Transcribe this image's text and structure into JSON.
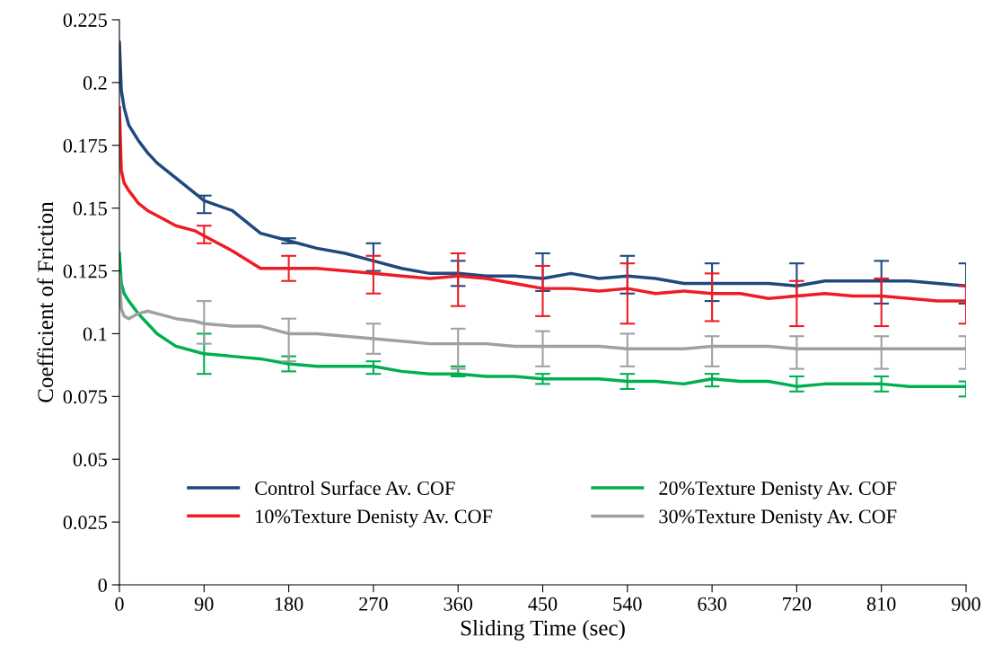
{
  "chart_data": {
    "type": "line",
    "xlabel": "Sliding Time (sec)",
    "ylabel": "Coefficient of Friction",
    "x": [
      0,
      2,
      5,
      10,
      20,
      30,
      40,
      60,
      80,
      90,
      120,
      150,
      180,
      210,
      240,
      270,
      300,
      330,
      360,
      390,
      420,
      450,
      480,
      510,
      540,
      570,
      600,
      630,
      660,
      690,
      720,
      750,
      780,
      810,
      840,
      870,
      900
    ],
    "series": [
      {
        "name": "Control Surface Av. COF",
        "color": "#1f497d",
        "values": [
          0.216,
          0.197,
          0.19,
          0.183,
          0.177,
          0.172,
          0.168,
          0.162,
          0.156,
          0.153,
          0.149,
          0.14,
          0.137,
          0.134,
          0.132,
          0.129,
          0.126,
          0.124,
          0.124,
          0.123,
          0.123,
          0.122,
          0.124,
          0.122,
          0.123,
          0.122,
          0.12,
          0.12,
          0.12,
          0.12,
          0.119,
          0.121,
          0.121,
          0.121,
          0.121,
          0.12,
          0.119
        ],
        "errors": [
          null,
          null,
          null,
          null,
          null,
          null,
          null,
          null,
          null,
          [
            0.148,
            0.155
          ],
          null,
          null,
          [
            0.136,
            0.138
          ],
          null,
          null,
          [
            0.125,
            0.136
          ],
          null,
          null,
          [
            0.119,
            0.129
          ],
          null,
          null,
          [
            0.117,
            0.132
          ],
          null,
          null,
          [
            0.116,
            0.131
          ],
          null,
          null,
          [
            0.113,
            0.128
          ],
          null,
          null,
          [
            0.115,
            0.128
          ],
          null,
          null,
          [
            0.112,
            0.129
          ],
          null,
          null,
          [
            0.112,
            0.128
          ]
        ]
      },
      {
        "name": "10%Texture Denisty Av. COF",
        "color": "#ee1c25",
        "values": [
          0.19,
          0.165,
          0.16,
          0.157,
          0.152,
          0.149,
          0.147,
          0.143,
          0.141,
          0.139,
          0.133,
          0.126,
          0.126,
          0.126,
          0.125,
          0.124,
          0.123,
          0.122,
          0.123,
          0.122,
          0.12,
          0.118,
          0.118,
          0.117,
          0.118,
          0.116,
          0.117,
          0.116,
          0.116,
          0.114,
          0.115,
          0.116,
          0.115,
          0.115,
          0.114,
          0.113,
          0.113
        ],
        "errors": [
          null,
          null,
          null,
          null,
          null,
          null,
          null,
          null,
          null,
          [
            0.136,
            0.143
          ],
          null,
          null,
          [
            0.121,
            0.131
          ],
          null,
          null,
          [
            0.116,
            0.131
          ],
          null,
          null,
          [
            0.111,
            0.132
          ],
          null,
          null,
          [
            0.107,
            0.127
          ],
          null,
          null,
          [
            0.104,
            0.128
          ],
          null,
          null,
          [
            0.105,
            0.124
          ],
          null,
          null,
          [
            0.103,
            0.121
          ],
          null,
          null,
          [
            0.103,
            0.122
          ],
          null,
          null,
          [
            0.104,
            0.119
          ]
        ]
      },
      {
        "name": "20%Texture Denisty Av. COF",
        "color": "#00b050",
        "values": [
          0.132,
          0.12,
          0.116,
          0.113,
          0.108,
          0.104,
          0.1,
          0.095,
          0.093,
          0.092,
          0.091,
          0.09,
          0.088,
          0.087,
          0.087,
          0.087,
          0.085,
          0.084,
          0.084,
          0.083,
          0.083,
          0.082,
          0.082,
          0.082,
          0.081,
          0.081,
          0.08,
          0.082,
          0.081,
          0.081,
          0.079,
          0.08,
          0.08,
          0.08,
          0.079,
          0.079,
          0.079
        ],
        "errors": [
          null,
          null,
          null,
          null,
          null,
          null,
          null,
          null,
          null,
          [
            0.084,
            0.1
          ],
          null,
          null,
          [
            0.085,
            0.091
          ],
          null,
          null,
          [
            0.084,
            0.089
          ],
          null,
          null,
          [
            0.083,
            0.087
          ],
          null,
          null,
          [
            0.08,
            0.084
          ],
          null,
          null,
          [
            0.078,
            0.084
          ],
          null,
          null,
          [
            0.079,
            0.084
          ],
          null,
          null,
          [
            0.077,
            0.083
          ],
          null,
          null,
          [
            0.077,
            0.083
          ],
          null,
          null,
          [
            0.075,
            0.081
          ]
        ]
      },
      {
        "name": "30%Texture Denisty Av. COF",
        "color": "#a0a0a0",
        "values": [
          0.123,
          0.11,
          0.107,
          0.106,
          0.108,
          0.109,
          0.108,
          0.106,
          0.105,
          0.104,
          0.103,
          0.103,
          0.1,
          0.1,
          0.099,
          0.098,
          0.097,
          0.096,
          0.096,
          0.096,
          0.095,
          0.095,
          0.095,
          0.095,
          0.094,
          0.094,
          0.094,
          0.095,
          0.095,
          0.095,
          0.094,
          0.094,
          0.094,
          0.094,
          0.094,
          0.094,
          0.094
        ],
        "errors": [
          null,
          null,
          null,
          null,
          null,
          null,
          null,
          null,
          null,
          [
            0.096,
            0.113
          ],
          null,
          null,
          [
            0.089,
            0.106
          ],
          null,
          null,
          [
            0.092,
            0.104
          ],
          null,
          null,
          [
            0.086,
            0.102
          ],
          null,
          null,
          [
            0.087,
            0.101
          ],
          null,
          null,
          [
            0.087,
            0.1
          ],
          null,
          null,
          [
            0.087,
            0.099
          ],
          null,
          null,
          [
            0.086,
            0.099
          ],
          null,
          null,
          [
            0.086,
            0.099
          ],
          null,
          null,
          [
            0.086,
            0.099
          ]
        ]
      }
    ],
    "xlim": [
      0,
      900
    ],
    "xticks": [
      0,
      90,
      180,
      270,
      360,
      450,
      540,
      630,
      720,
      810,
      900
    ],
    "ylim": [
      0,
      0.225
    ],
    "yticks": [
      0,
      0.025,
      0.05,
      0.075,
      0.1,
      0.125,
      0.15,
      0.175,
      0.2,
      0.225
    ],
    "grid": false,
    "legend": "bottom",
    "marker": "none",
    "line_style": "solid"
  }
}
